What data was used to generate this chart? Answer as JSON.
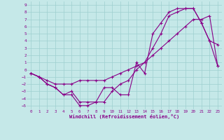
{
  "xlabel": "Windchill (Refroidissement éolien,°C)",
  "bg_color": "#c5e8e8",
  "grid_color": "#9dcfcf",
  "line_color": "#880088",
  "xlim": [
    -0.5,
    23.5
  ],
  "ylim": [
    -5.5,
    9.5
  ],
  "xticks": [
    0,
    1,
    2,
    3,
    4,
    5,
    6,
    7,
    8,
    9,
    10,
    11,
    12,
    13,
    14,
    15,
    16,
    17,
    18,
    19,
    20,
    21,
    22,
    23
  ],
  "yticks": [
    -5,
    -4,
    -3,
    -2,
    -1,
    0,
    1,
    2,
    3,
    4,
    5,
    6,
    7,
    8,
    9
  ],
  "line1_x": [
    0,
    1,
    2,
    3,
    4,
    5,
    6,
    7,
    8,
    9,
    10,
    11,
    12,
    13,
    14,
    15,
    16,
    17,
    18,
    19,
    20,
    21,
    22,
    23
  ],
  "line1_y": [
    -0.5,
    -1,
    -2,
    -2.5,
    -3.5,
    -3.5,
    -5,
    -5,
    -4.5,
    -2.5,
    -2.5,
    -3.5,
    -3.5,
    1,
    -0.5,
    5,
    6.5,
    8,
    8.5,
    8.5,
    8.5,
    6.5,
    4,
    3.5
  ],
  "line2_x": [
    0,
    1,
    2,
    3,
    4,
    5,
    6,
    7,
    8,
    9,
    10,
    11,
    12,
    13,
    14,
    15,
    16,
    17,
    18,
    19,
    20,
    21,
    22,
    23
  ],
  "line2_y": [
    -0.5,
    -1,
    -2,
    -2.5,
    -3.5,
    -3.0,
    -4.5,
    -4.5,
    -4.5,
    -4.5,
    -3,
    -2,
    -1.5,
    0,
    1,
    3,
    5,
    7.5,
    8,
    8.5,
    8.5,
    6.5,
    4,
    0.5
  ],
  "line3_x": [
    0,
    1,
    2,
    3,
    4,
    5,
    6,
    7,
    8,
    9,
    10,
    11,
    12,
    13,
    14,
    15,
    16,
    17,
    18,
    19,
    20,
    21,
    22,
    23
  ],
  "line3_y": [
    -0.5,
    -1,
    -1.5,
    -2,
    -2,
    -2,
    -1.5,
    -1.5,
    -1.5,
    -1.5,
    -1,
    -0.5,
    0,
    0.5,
    1,
    2,
    3,
    4,
    5,
    6,
    7,
    7,
    7.5,
    0.5
  ]
}
